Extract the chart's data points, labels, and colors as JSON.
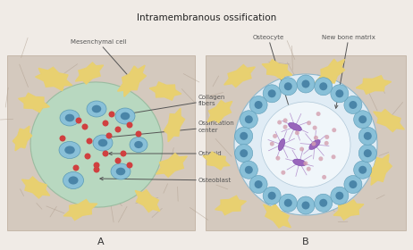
{
  "title": "Intramembranous ossification",
  "title_fontsize": 7.5,
  "fig_bg": "#f0ebe6",
  "panel_bg": "#d4c9be",
  "panel_A_label": "A",
  "panel_B_label": "B",
  "arrow_color": "#555555",
  "text_color": "#555555",
  "label_fontsize": 5.0,
  "yellow_cell_color": "#e8d070",
  "blue_cell_color": "#89c0d8",
  "blue_nucleus_color": "#4a85a8",
  "green_blob_color": "#b8d8c0",
  "green_blob_edge": "#9abca0",
  "red_dot_color": "#d04040",
  "bone_matrix_color": "#e0ecf5",
  "inner_center_color": "#f0f6fa",
  "purple_cell_color": "#9966bb",
  "pink_dot_color": "#d4a0b0"
}
